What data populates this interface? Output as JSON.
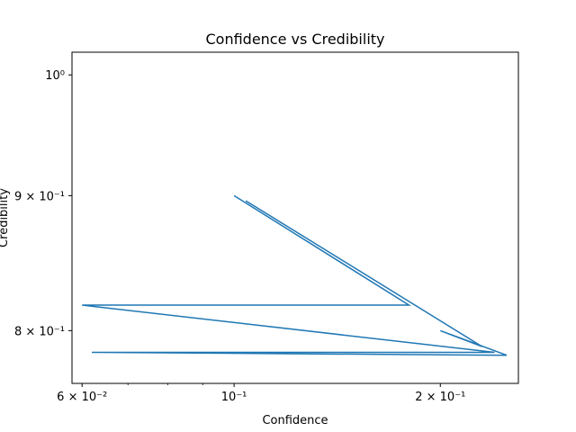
{
  "chart_data": {
    "type": "line",
    "title": "Confidence vs Credibility",
    "xlabel": "Confidence",
    "ylabel": "Credibility",
    "xscale": "log",
    "yscale": "log",
    "xlim": [
      0.058,
      0.26
    ],
    "ylim": [
      0.764,
      1.02
    ],
    "grid": false,
    "color": "#1f77b4",
    "x_ticks": [
      {
        "value": 0.06,
        "label": "6 × 10⁻²"
      },
      {
        "value": 0.1,
        "label": "10⁻¹"
      },
      {
        "value": 0.2,
        "label": "2 × 10⁻¹"
      }
    ],
    "y_ticks": [
      {
        "value": 0.8,
        "label": "8 × 10⁻¹"
      },
      {
        "value": 0.9,
        "label": "9 × 10⁻¹"
      },
      {
        "value": 1.0,
        "label": "10⁰"
      }
    ],
    "x_minor_ticks": [
      0.07,
      0.08,
      0.09
    ],
    "series": [
      {
        "name": "",
        "x": [
          0.1,
          0.18,
          0.06,
          0.24,
          0.062,
          0.25,
          0.2,
          0.23,
          0.104
        ],
        "y": [
          0.9,
          0.818,
          0.818,
          0.785,
          0.785,
          0.783,
          0.8,
          0.789,
          0.896
        ]
      }
    ]
  }
}
